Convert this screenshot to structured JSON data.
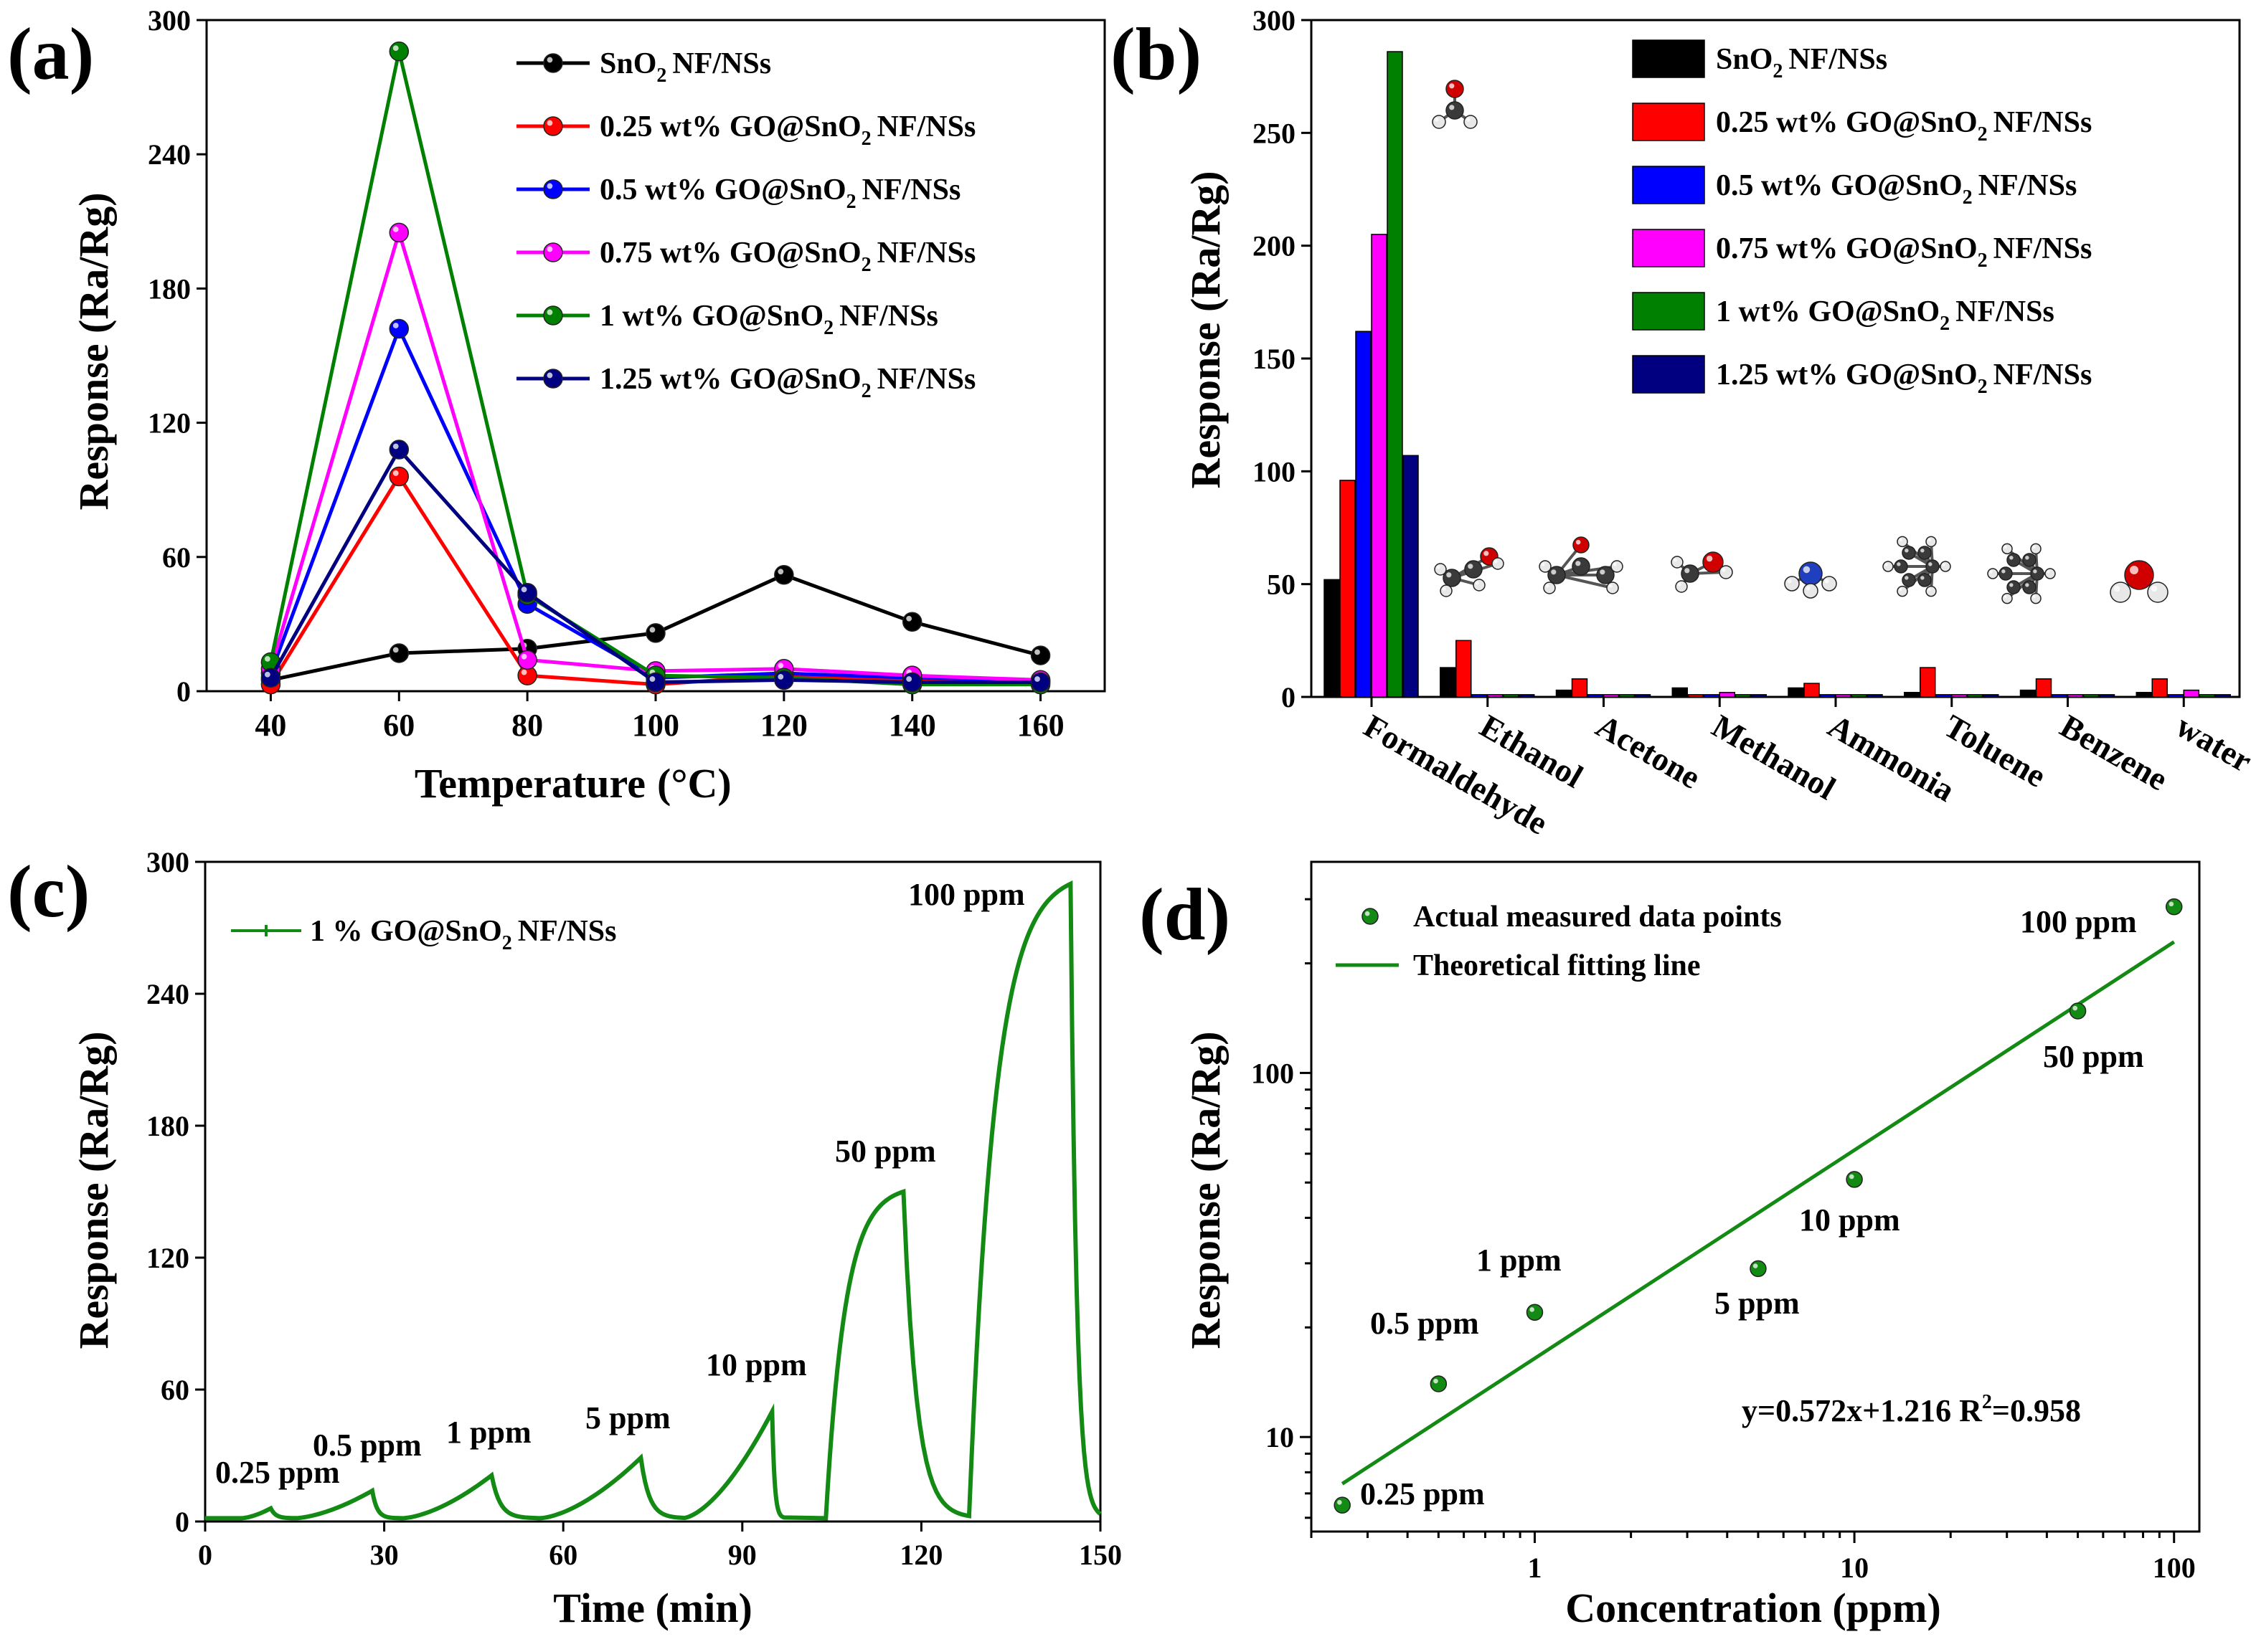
{
  "panels": {
    "a": "(a)",
    "b": "(b)",
    "c": "(c)",
    "d": "(d)"
  },
  "colors": {
    "series": [
      "#000000",
      "#ff0000",
      "#0000ff",
      "#ff00ff",
      "#008000",
      "#000080"
    ],
    "green": "#138a13"
  },
  "chart_data": [
    {
      "type": "line",
      "title": "(a)",
      "xlabel": "Temperature",
      "xlabel_unit": "(°C)",
      "ylabel": "Response (Ra/Rg)",
      "x": [
        40,
        60,
        80,
        100,
        120,
        140,
        160
      ],
      "xlim": [
        30,
        170
      ],
      "ylim": [
        0,
        300
      ],
      "xticks": [
        "40",
        "60",
        "80",
        "100",
        "120",
        "140",
        "160"
      ],
      "yticks": [
        "0",
        "60",
        "120",
        "180",
        "240",
        "300"
      ],
      "legend_position": "top-right",
      "series": [
        {
          "name": "SnO",
          "sub": "2",
          "tail": "NF/NSs",
          "values": [
            5,
            17,
            19,
            26,
            52,
            31,
            16
          ]
        },
        {
          "name": "0.25 wt% GO@SnO",
          "sub": "2",
          "tail": "NF/NSs",
          "values": [
            3,
            96,
            7,
            3,
            7,
            5,
            4
          ]
        },
        {
          "name": "0.5 wt% GO@SnO",
          "sub": "2",
          "tail": "NF/NSs",
          "values": [
            8,
            162,
            39,
            6,
            8,
            6,
            5
          ]
        },
        {
          "name": "0.75 wt% GO@SnO",
          "sub": "2",
          "tail": "NF/NSs",
          "values": [
            10,
            205,
            14,
            9,
            10,
            7,
            5
          ]
        },
        {
          "name": "1 wt% GO@SnO",
          "sub": "2",
          "tail": "NF/NSs",
          "values": [
            13,
            286,
            43,
            7,
            6,
            3,
            3
          ]
        },
        {
          "name": "1.25 wt% GO@SnO",
          "sub": "2",
          "tail": "NF/NSs",
          "values": [
            6,
            108,
            44,
            4,
            5,
            4,
            4
          ]
        }
      ]
    },
    {
      "type": "bar",
      "title": "(b)",
      "ylabel": "Response (Ra/Rg)",
      "categories": [
        "Formaldehyde",
        "Ethanol",
        "Acetone",
        "Methanol",
        "Ammonia",
        "Toluene",
        "Benzene",
        "water"
      ],
      "ylim": [
        0,
        300
      ],
      "yticks": [
        "0",
        "50",
        "100",
        "150",
        "200",
        "250",
        "300"
      ],
      "legend_position": "top-right",
      "series": [
        {
          "name": "SnO",
          "sub": "2",
          "tail": "NF/NSs",
          "values": [
            52,
            13,
            3,
            4,
            4,
            2,
            3,
            2
          ]
        },
        {
          "name": "0.25 wt% GO@SnO",
          "sub": "2",
          "tail": "NF/NSs",
          "values": [
            96,
            25,
            8,
            1,
            6,
            13,
            8,
            8
          ]
        },
        {
          "name": "0.5 wt% GO@SnO",
          "sub": "2",
          "tail": "NF/NSs",
          "values": [
            162,
            1,
            1,
            1,
            1,
            1,
            1,
            1
          ]
        },
        {
          "name": "0.75 wt% GO@SnO",
          "sub": "2",
          "tail": "NF/NSs",
          "values": [
            205,
            1,
            1,
            2,
            1,
            1,
            1,
            3
          ]
        },
        {
          "name": "1 wt% GO@SnO",
          "sub": "2",
          "tail": "NF/NSs",
          "values": [
            286,
            1,
            1,
            1,
            1,
            1,
            1,
            1
          ]
        },
        {
          "name": "1.25 wt% GO@SnO",
          "sub": "2",
          "tail": "NF/NSs",
          "values": [
            107,
            1,
            1,
            1,
            1,
            1,
            1,
            1
          ]
        }
      ]
    },
    {
      "type": "line",
      "title": "(c)",
      "xlabel": "Time (min)",
      "ylabel": "Response (Ra/Rg)",
      "xlim": [
        0,
        150
      ],
      "ylim": [
        0,
        300
      ],
      "xticks": [
        "0",
        "30",
        "60",
        "90",
        "120",
        "150"
      ],
      "yticks": [
        "0",
        "60",
        "120",
        "180",
        "240",
        "300"
      ],
      "legend_position": "top-left",
      "series": [
        {
          "name": "1 % GO@SnO",
          "sub": "2",
          "tail": "NF/NSs"
        }
      ],
      "pulses": [
        {
          "label": "0.25 ppm",
          "start": 6,
          "end": 11,
          "peak": 6,
          "recover_end": 15
        },
        {
          "label": "0.5 ppm",
          "start": 15,
          "end": 28,
          "peak": 14,
          "recover_end": 32
        },
        {
          "label": "1 ppm",
          "start": 33,
          "end": 48,
          "peak": 21,
          "recover_end": 55
        },
        {
          "label": "5 ppm",
          "start": 56,
          "end": 73,
          "peak": 29,
          "recover_end": 80
        },
        {
          "label": "10 ppm",
          "start": 80,
          "end": 95,
          "peak": 50,
          "recover_end": 97
        },
        {
          "label": "50 ppm",
          "start": 104,
          "end": 117,
          "peak": 150,
          "recover_end": 128
        },
        {
          "label": "100 ppm",
          "start": 128,
          "end": 145,
          "peak": 290,
          "recover_end": 150
        }
      ]
    },
    {
      "type": "scatter",
      "title": "(d)",
      "xlabel": "Concentration (ppm)",
      "ylabel": "Response (Ra/Rg)",
      "xscale": "log",
      "yscale": "log",
      "xlim": [
        0.2,
        120
      ],
      "ylim": [
        5.5,
        380
      ],
      "xticks": [
        "1",
        "10",
        "100"
      ],
      "yticks": [
        "10",
        "100"
      ],
      "legend_position": "top-left",
      "points": [
        {
          "x": 0.25,
          "y": 6.5,
          "label": "0.25 ppm"
        },
        {
          "x": 0.5,
          "y": 14,
          "label": "0.5 ppm"
        },
        {
          "x": 1,
          "y": 22,
          "label": "1 ppm"
        },
        {
          "x": 5,
          "y": 29,
          "label": "5 ppm"
        },
        {
          "x": 10,
          "y": 51,
          "label": "10 ppm"
        },
        {
          "x": 50,
          "y": 148,
          "label": "50 ppm"
        },
        {
          "x": 100,
          "y": 286,
          "label": "100 ppm"
        }
      ],
      "fit": {
        "slope": 0.572,
        "intercept": 1.216,
        "x_range": [
          0.25,
          100
        ]
      },
      "legend": [
        "Actual measured data points",
        "Theoretical fitting line"
      ],
      "equation": "y=0.572x+1.216 R",
      "equation_r2": "=0.958",
      "equation_sup": "2"
    }
  ]
}
